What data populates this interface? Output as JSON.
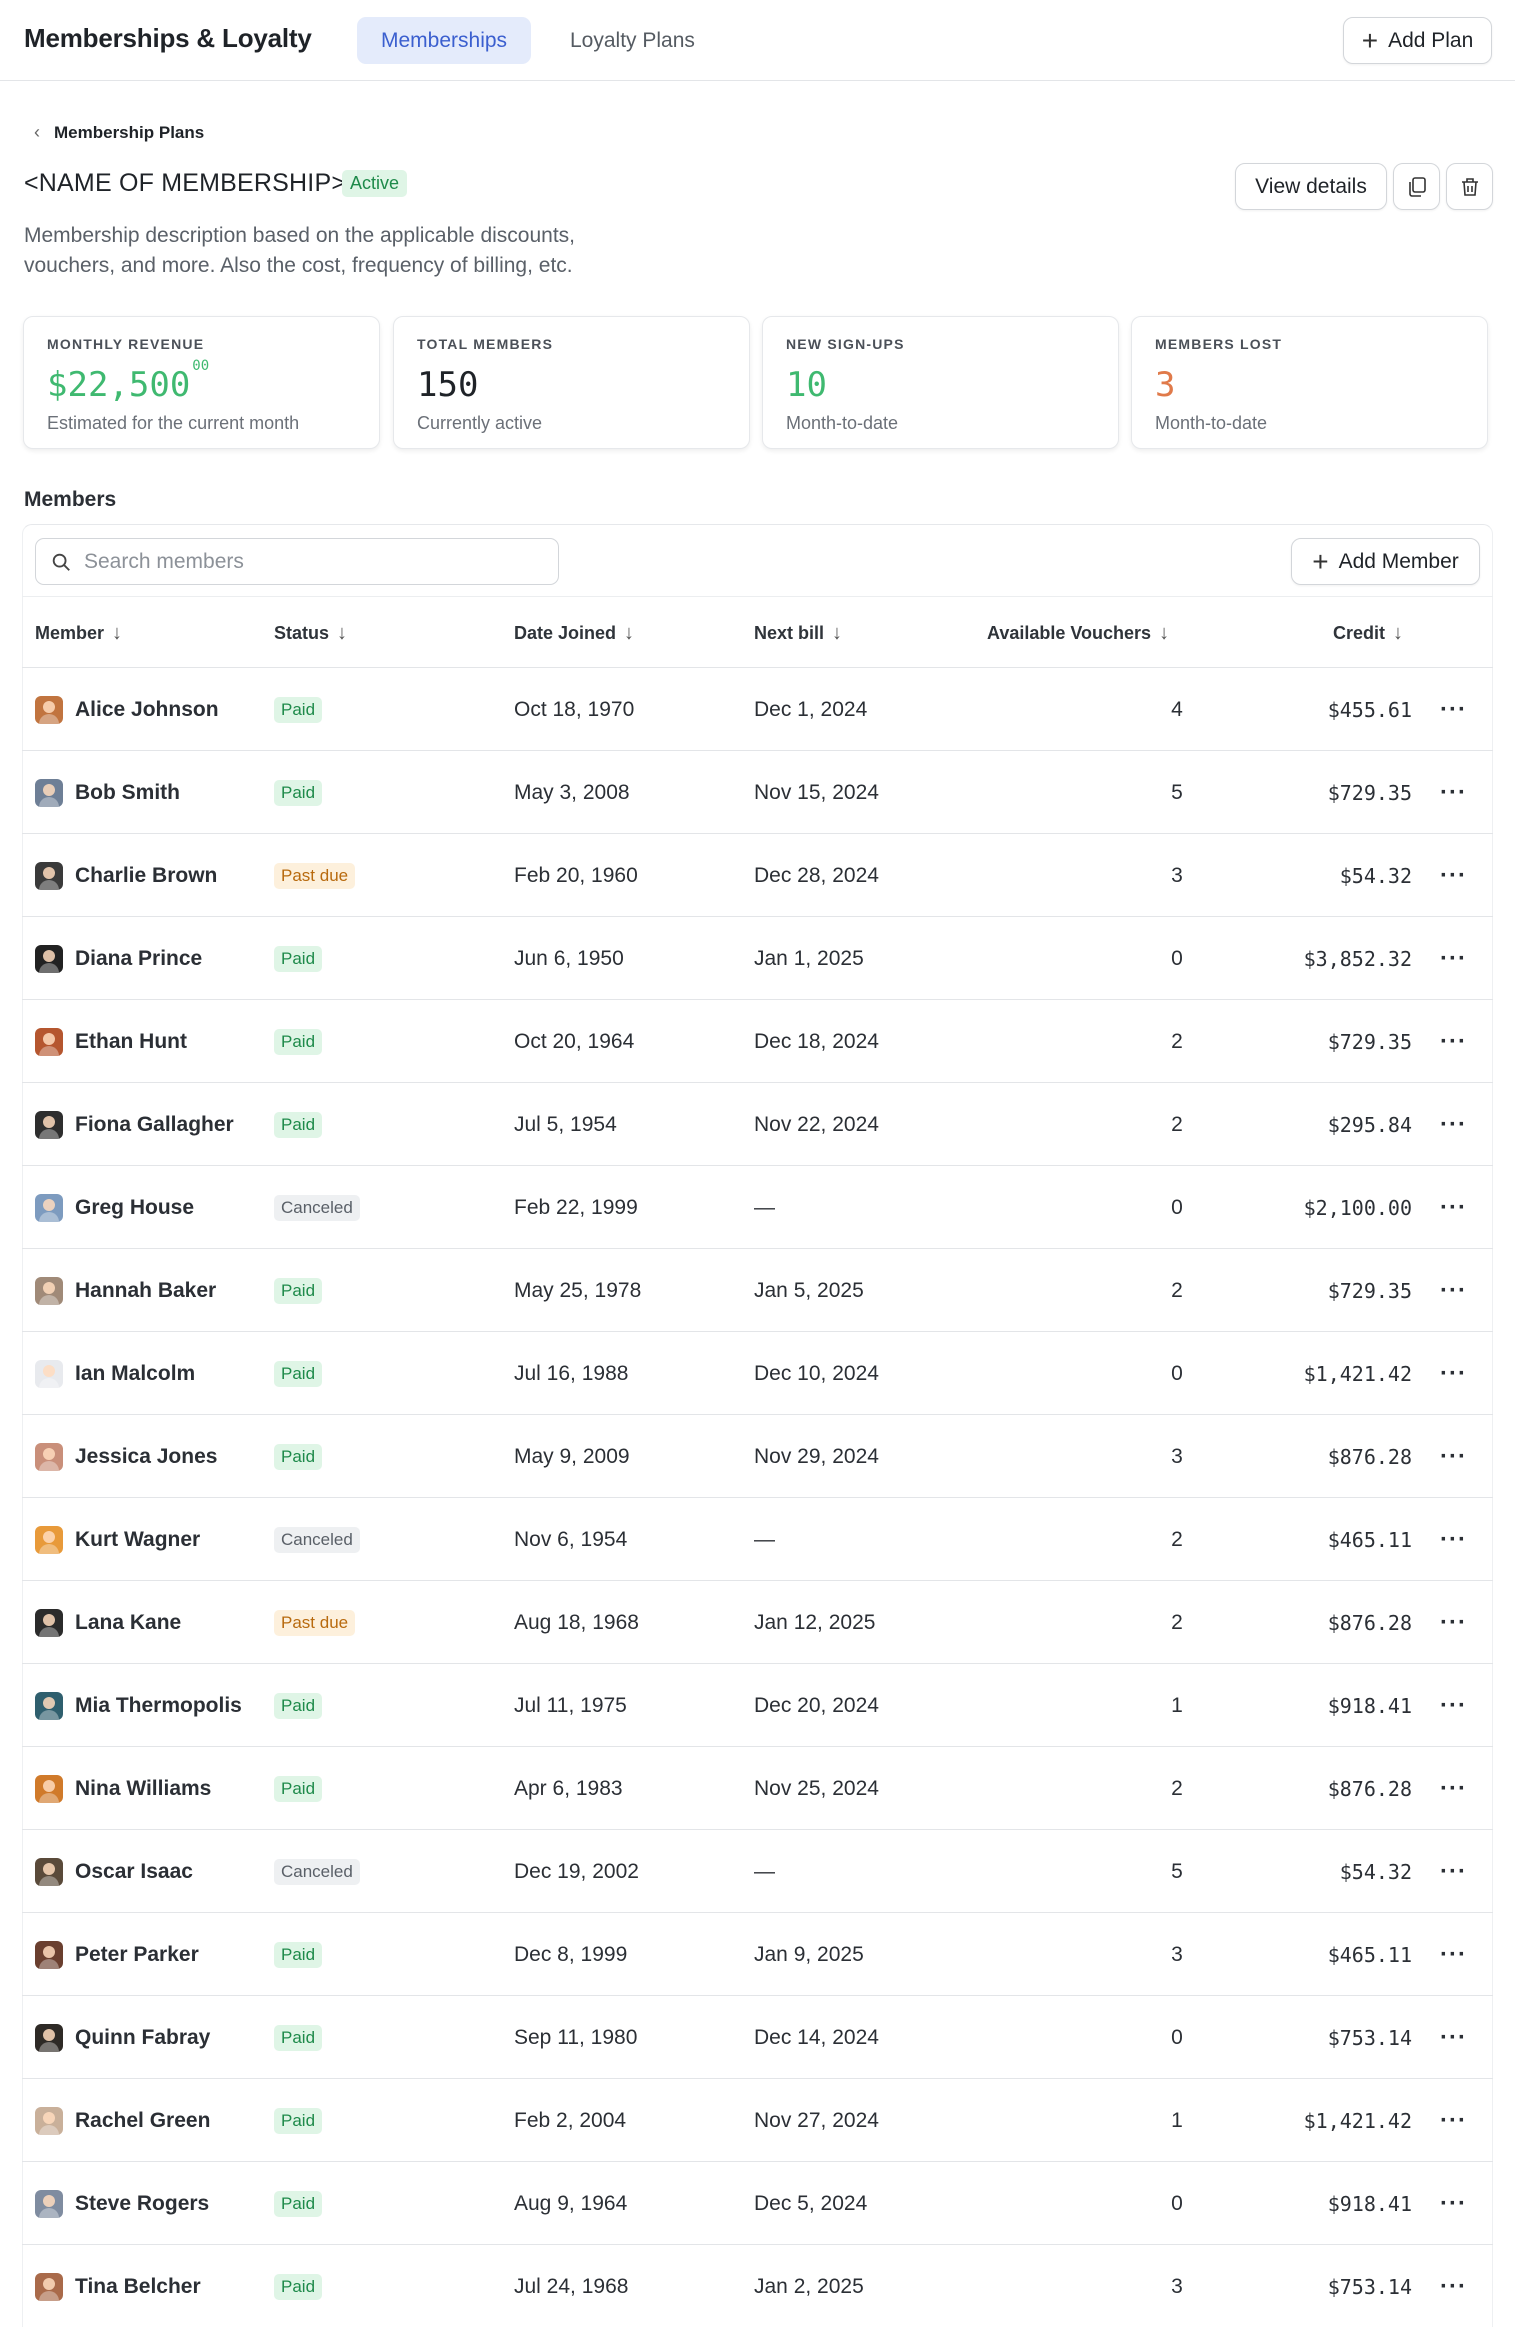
{
  "app": {
    "title": "Memberships & Loyalty",
    "tabs": [
      {
        "label": "Memberships",
        "active": true
      },
      {
        "label": "Loyalty Plans",
        "active": false
      }
    ],
    "add_plan_label": "Add Plan"
  },
  "header": {
    "breadcrumb": "Membership Plans",
    "title": "<NAME OF MEMBERSHIP>",
    "status": "Active",
    "description": "Membership description based on the applicable discounts, vouchers, and more. Also the cost, frequency of billing, etc.",
    "view_details_label": "View details",
    "copy_icon": "copy-icon",
    "delete_icon": "trash-icon"
  },
  "stats": [
    {
      "label": "MONTHLY REVENUE",
      "value": "$22,500",
      "cents": "00",
      "sub": "Estimated for the current month",
      "color": "#3fb970"
    },
    {
      "label": "TOTAL MEMBERS",
      "value": "150",
      "cents": "",
      "sub": "Currently active",
      "color": "#1f2328"
    },
    {
      "label": "NEW SIGN-UPS",
      "value": "10",
      "cents": "",
      "sub": "Month-to-date",
      "color": "#3fb970"
    },
    {
      "label": "MEMBERS LOST",
      "value": "3",
      "cents": "",
      "sub": "Month-to-date",
      "color": "#e07a4a"
    }
  ],
  "members": {
    "section_title": "Members",
    "search_placeholder": "Search members",
    "add_member_label": "Add Member",
    "columns": [
      "Member",
      "Status",
      "Date Joined",
      "Next bill",
      "Available Vouchers",
      "Credit"
    ],
    "status_colors": {
      "Paid": "#1e8a4a",
      "Past due": "#b86a0e",
      "Canceled": "#5a6068"
    },
    "rows": [
      {
        "name": "Alice Johnson",
        "status": "Paid",
        "joined": "Oct 18, 1970",
        "next_bill": "Dec 1, 2024",
        "vouchers": "4",
        "credit": "$455.61",
        "avatar_color": "#c1743f"
      },
      {
        "name": "Bob Smith",
        "status": "Paid",
        "joined": "May 3, 2008",
        "next_bill": "Nov 15, 2024",
        "vouchers": "5",
        "credit": "$729.35",
        "avatar_color": "#6e7f96"
      },
      {
        "name": "Charlie Brown",
        "status": "Past due",
        "joined": "Feb 20, 1960",
        "next_bill": "Dec 28, 2024",
        "vouchers": "3",
        "credit": "$54.32",
        "avatar_color": "#3a3a3a"
      },
      {
        "name": "Diana Prince",
        "status": "Paid",
        "joined": "Jun 6, 1950",
        "next_bill": "Jan 1, 2025",
        "vouchers": "0",
        "credit": "$3,852.32",
        "avatar_color": "#222222"
      },
      {
        "name": "Ethan Hunt",
        "status": "Paid",
        "joined": "Oct 20, 1964",
        "next_bill": "Dec 18, 2024",
        "vouchers": "2",
        "credit": "$729.35",
        "avatar_color": "#b5562f"
      },
      {
        "name": "Fiona Gallagher",
        "status": "Paid",
        "joined": "Jul 5, 1954",
        "next_bill": "Nov 22, 2024",
        "vouchers": "2",
        "credit": "$295.84",
        "avatar_color": "#2e2e2e"
      },
      {
        "name": "Greg House",
        "status": "Canceled",
        "joined": "Feb 22, 1999",
        "next_bill": "—",
        "vouchers": "0",
        "credit": "$2,100.00",
        "avatar_color": "#7d9bbf"
      },
      {
        "name": "Hannah Baker",
        "status": "Paid",
        "joined": "May 25, 1978",
        "next_bill": "Jan 5, 2025",
        "vouchers": "2",
        "credit": "$729.35",
        "avatar_color": "#a08a78"
      },
      {
        "name": "Ian Malcolm",
        "status": "Paid",
        "joined": "Jul 16, 1988",
        "next_bill": "Dec 10, 2024",
        "vouchers": "0",
        "credit": "$1,421.42",
        "avatar_color": "#e8eaee"
      },
      {
        "name": "Jessica Jones",
        "status": "Paid",
        "joined": "May 9, 2009",
        "next_bill": "Nov 29, 2024",
        "vouchers": "3",
        "credit": "$876.28",
        "avatar_color": "#c98f7a"
      },
      {
        "name": "Kurt Wagner",
        "status": "Canceled",
        "joined": "Nov 6, 1954",
        "next_bill": "—",
        "vouchers": "2",
        "credit": "$465.11",
        "avatar_color": "#e89a3a"
      },
      {
        "name": "Lana Kane",
        "status": "Past due",
        "joined": "Aug 18, 1968",
        "next_bill": "Jan 12, 2025",
        "vouchers": "2",
        "credit": "$876.28",
        "avatar_color": "#2b2b2b"
      },
      {
        "name": "Mia Thermopolis",
        "status": "Paid",
        "joined": "Jul 11, 1975",
        "next_bill": "Dec 20, 2024",
        "vouchers": "1",
        "credit": "$918.41",
        "avatar_color": "#2f5f6e"
      },
      {
        "name": "Nina Williams",
        "status": "Paid",
        "joined": "Apr 6, 1983",
        "next_bill": "Nov 25, 2024",
        "vouchers": "2",
        "credit": "$876.28",
        "avatar_color": "#d07a2a"
      },
      {
        "name": "Oscar Isaac",
        "status": "Canceled",
        "joined": "Dec 19, 2002",
        "next_bill": "—",
        "vouchers": "5",
        "credit": "$54.32",
        "avatar_color": "#5a4a3a"
      },
      {
        "name": "Peter Parker",
        "status": "Paid",
        "joined": "Dec 8, 1999",
        "next_bill": "Jan 9, 2025",
        "vouchers": "3",
        "credit": "$465.11",
        "avatar_color": "#6a3f2f"
      },
      {
        "name": "Quinn Fabray",
        "status": "Paid",
        "joined": "Sep 11, 1980",
        "next_bill": "Dec 14, 2024",
        "vouchers": "0",
        "credit": "$753.14",
        "avatar_color": "#2e2a26"
      },
      {
        "name": "Rachel Green",
        "status": "Paid",
        "joined": "Feb 2, 2004",
        "next_bill": "Nov 27, 2024",
        "vouchers": "1",
        "credit": "$1,421.42",
        "avatar_color": "#c9b09a"
      },
      {
        "name": "Steve Rogers",
        "status": "Paid",
        "joined": "Aug 9, 1964",
        "next_bill": "Dec 5, 2024",
        "vouchers": "0",
        "credit": "$918.41",
        "avatar_color": "#7f8ca0"
      },
      {
        "name": "Tina Belcher",
        "status": "Paid",
        "joined": "Jul 24, 1968",
        "next_bill": "Jan 2, 2025",
        "vouchers": "3",
        "credit": "$753.14",
        "avatar_color": "#a96a4a"
      }
    ]
  }
}
